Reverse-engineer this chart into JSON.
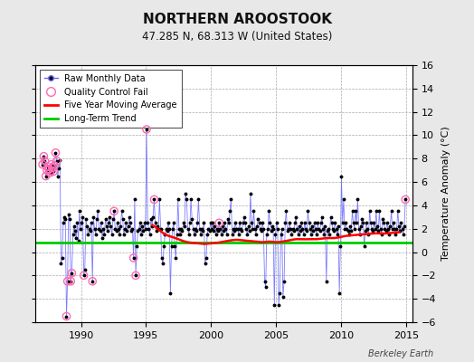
{
  "title": "NORTHERN AROOSTOOK",
  "subtitle": "47.285 N, 68.313 W (United States)",
  "ylabel_right": "Temperature Anomaly (°C)",
  "watermark": "Berkeley Earth",
  "xlim": [
    1986.5,
    2015.5
  ],
  "ylim": [
    -6,
    16
  ],
  "yticks": [
    -6,
    -4,
    -2,
    0,
    2,
    4,
    6,
    8,
    10,
    12,
    14,
    16
  ],
  "xticks": [
    1990,
    1995,
    2000,
    2005,
    2010,
    2015
  ],
  "background_color": "#e8e8e8",
  "plot_bg_color": "#ffffff",
  "raw_line_color": "#6666ff",
  "raw_marker_color": "#000000",
  "qc_fail_color": "#ff69b4",
  "moving_avg_color": "#ff0000",
  "trend_color": "#00cc00",
  "trend_value": 0.85,
  "moving_avg": {
    "x": [
      1995.5,
      1996.0,
      1996.5,
      1997.0,
      1997.5,
      1998.0,
      1998.5,
      1999.0,
      1999.5,
      2000.0,
      2000.5,
      2001.0,
      2001.5,
      2002.0,
      2002.5,
      2003.0,
      2003.5,
      2004.0,
      2004.5,
      2005.0,
      2005.5,
      2006.0,
      2006.5,
      2007.0,
      2007.5,
      2008.0,
      2008.5,
      2009.0,
      2009.5,
      2010.0,
      2010.5,
      2011.0,
      2011.5,
      2012.0,
      2012.5,
      2013.0,
      2013.5,
      2014.0,
      2014.5
    ],
    "y": [
      2.3,
      1.9,
      1.5,
      1.3,
      1.1,
      0.9,
      0.8,
      0.75,
      0.7,
      0.75,
      0.8,
      0.9,
      1.0,
      1.05,
      1.0,
      0.95,
      0.9,
      0.85,
      0.9,
      0.85,
      0.9,
      1.0,
      1.1,
      1.1,
      1.1,
      1.1,
      1.15,
      1.2,
      1.2,
      1.3,
      1.4,
      1.45,
      1.5,
      1.55,
      1.6,
      1.6,
      1.6,
      1.65,
      1.7
    ]
  },
  "raw_data_x": [
    1987.04,
    1987.13,
    1987.21,
    1987.29,
    1987.38,
    1987.46,
    1987.54,
    1987.63,
    1987.71,
    1987.79,
    1987.88,
    1987.96,
    1988.04,
    1988.13,
    1988.21,
    1988.29,
    1988.38,
    1988.46,
    1988.54,
    1988.63,
    1988.71,
    1988.79,
    1988.88,
    1988.96,
    1989.04,
    1989.13,
    1989.21,
    1989.29,
    1989.38,
    1989.46,
    1989.54,
    1989.63,
    1989.71,
    1989.79,
    1989.88,
    1989.96,
    1990.04,
    1990.13,
    1990.21,
    1990.29,
    1990.38,
    1990.46,
    1990.54,
    1990.63,
    1990.71,
    1990.79,
    1990.88,
    1990.96,
    1991.04,
    1991.13,
    1991.21,
    1991.29,
    1991.38,
    1991.46,
    1991.54,
    1991.63,
    1991.71,
    1991.79,
    1991.88,
    1991.96,
    1992.04,
    1992.13,
    1992.21,
    1992.29,
    1992.38,
    1992.46,
    1992.54,
    1992.63,
    1992.71,
    1992.79,
    1992.88,
    1992.96,
    1993.04,
    1993.13,
    1993.21,
    1993.29,
    1993.38,
    1993.46,
    1993.54,
    1993.63,
    1993.71,
    1993.79,
    1993.88,
    1993.96,
    1994.04,
    1994.13,
    1994.21,
    1994.29,
    1994.38,
    1994.46,
    1994.54,
    1994.63,
    1994.71,
    1994.79,
    1994.88,
    1994.96,
    1995.04,
    1995.13,
    1995.21,
    1995.29,
    1995.38,
    1995.46,
    1995.54,
    1995.63,
    1995.71,
    1995.79,
    1995.88,
    1995.96,
    1996.04,
    1996.13,
    1996.21,
    1996.29,
    1996.38,
    1996.46,
    1996.54,
    1996.63,
    1996.71,
    1996.79,
    1996.88,
    1996.96,
    1997.04,
    1997.13,
    1997.21,
    1997.29,
    1997.38,
    1997.46,
    1997.54,
    1997.63,
    1997.71,
    1997.79,
    1997.88,
    1997.96,
    1998.04,
    1998.13,
    1998.21,
    1998.29,
    1998.38,
    1998.46,
    1998.54,
    1998.63,
    1998.71,
    1998.79,
    1998.88,
    1998.96,
    1999.04,
    1999.13,
    1999.21,
    1999.29,
    1999.38,
    1999.46,
    1999.54,
    1999.63,
    1999.71,
    1999.79,
    1999.88,
    1999.96,
    2000.04,
    2000.13,
    2000.21,
    2000.29,
    2000.38,
    2000.46,
    2000.54,
    2000.63,
    2000.71,
    2000.79,
    2000.88,
    2000.96,
    2001.04,
    2001.13,
    2001.21,
    2001.29,
    2001.38,
    2001.46,
    2001.54,
    2001.63,
    2001.71,
    2001.79,
    2001.88,
    2001.96,
    2002.04,
    2002.13,
    2002.21,
    2002.29,
    2002.38,
    2002.46,
    2002.54,
    2002.63,
    2002.71,
    2002.79,
    2002.88,
    2002.96,
    2003.04,
    2003.13,
    2003.21,
    2003.29,
    2003.38,
    2003.46,
    2003.54,
    2003.63,
    2003.71,
    2003.79,
    2003.88,
    2003.96,
    2004.04,
    2004.13,
    2004.21,
    2004.29,
    2004.38,
    2004.46,
    2004.54,
    2004.63,
    2004.71,
    2004.79,
    2004.88,
    2004.96,
    2005.04,
    2005.13,
    2005.21,
    2005.29,
    2005.38,
    2005.46,
    2005.54,
    2005.63,
    2005.71,
    2005.79,
    2005.88,
    2005.96,
    2006.04,
    2006.13,
    2006.21,
    2006.29,
    2006.38,
    2006.46,
    2006.54,
    2006.63,
    2006.71,
    2006.79,
    2006.88,
    2006.96,
    2007.04,
    2007.13,
    2007.21,
    2007.29,
    2007.38,
    2007.46,
    2007.54,
    2007.63,
    2007.71,
    2007.79,
    2007.88,
    2007.96,
    2008.04,
    2008.13,
    2008.21,
    2008.29,
    2008.38,
    2008.46,
    2008.54,
    2008.63,
    2008.71,
    2008.79,
    2008.88,
    2008.96,
    2009.04,
    2009.13,
    2009.21,
    2009.29,
    2009.38,
    2009.46,
    2009.54,
    2009.63,
    2009.71,
    2009.79,
    2009.88,
    2009.96,
    2010.04,
    2010.13,
    2010.21,
    2010.29,
    2010.38,
    2010.46,
    2010.54,
    2010.63,
    2010.71,
    2010.79,
    2010.88,
    2010.96,
    2011.04,
    2011.13,
    2011.21,
    2011.29,
    2011.38,
    2011.46,
    2011.54,
    2011.63,
    2011.71,
    2011.79,
    2011.88,
    2011.96,
    2012.04,
    2012.13,
    2012.21,
    2012.29,
    2012.38,
    2012.46,
    2012.54,
    2012.63,
    2012.71,
    2012.79,
    2012.88,
    2012.96,
    2013.04,
    2013.13,
    2013.21,
    2013.29,
    2013.38,
    2013.46,
    2013.54,
    2013.63,
    2013.71,
    2013.79,
    2013.88,
    2013.96,
    2014.04,
    2014.13,
    2014.21,
    2014.29,
    2014.38,
    2014.46,
    2014.54,
    2014.63,
    2014.71,
    2014.79,
    2014.88,
    2014.96
  ],
  "raw_data_y": [
    7.5,
    8.2,
    7.8,
    6.5,
    7.0,
    7.3,
    7.1,
    6.8,
    7.5,
    7.2,
    6.9,
    7.4,
    8.5,
    7.8,
    6.5,
    7.2,
    7.9,
    -1.0,
    -0.5,
    2.5,
    3.0,
    2.8,
    -5.5,
    -2.5,
    3.2,
    2.8,
    -2.5,
    -1.8,
    1.5,
    2.2,
    1.8,
    1.2,
    2.5,
    1.0,
    3.5,
    2.0,
    2.5,
    3.0,
    -2.0,
    -1.5,
    2.8,
    2.2,
    1.5,
    2.0,
    1.8,
    2.5,
    -2.5,
    3.0,
    2.0,
    1.5,
    2.8,
    3.5,
    2.0,
    1.8,
    2.5,
    1.2,
    2.0,
    1.5,
    2.8,
    2.2,
    1.8,
    2.5,
    3.0,
    2.2,
    1.5,
    2.8,
    3.5,
    2.0,
    1.8,
    2.5,
    2.0,
    1.5,
    2.2,
    3.5,
    2.8,
    1.5,
    2.0,
    2.5,
    1.8,
    2.2,
    3.0,
    2.5,
    1.8,
    2.0,
    -0.5,
    4.5,
    -2.0,
    0.5,
    1.8,
    2.0,
    2.5,
    1.5,
    2.2,
    1.8,
    2.5,
    2.0,
    10.5,
    2.5,
    2.0,
    1.5,
    2.8,
    2.2,
    3.0,
    4.5,
    2.5,
    1.8,
    2.2,
    2.0,
    4.5,
    2.0,
    -0.5,
    -1.0,
    0.5,
    1.5,
    2.0,
    1.8,
    2.5,
    2.0,
    -3.5,
    0.5,
    2.0,
    2.5,
    0.5,
    -0.5,
    1.5,
    4.5,
    2.0,
    1.5,
    2.0,
    1.8,
    2.5,
    2.2,
    5.0,
    4.5,
    2.0,
    1.5,
    2.5,
    4.5,
    2.8,
    2.0,
    1.5,
    2.0,
    1.8,
    2.5,
    4.5,
    2.0,
    1.5,
    2.0,
    1.8,
    2.5,
    -1.0,
    -0.5,
    1.5,
    2.0,
    1.8,
    2.5,
    2.0,
    2.5,
    1.8,
    2.2,
    1.5,
    2.0,
    1.8,
    2.5,
    2.0,
    1.5,
    2.2,
    1.8,
    2.5,
    2.0,
    1.5,
    2.8,
    2.5,
    3.5,
    4.5,
    1.5,
    2.0,
    1.8,
    2.5,
    2.0,
    2.0,
    1.5,
    2.5,
    2.0,
    1.8,
    2.5,
    3.0,
    2.5,
    2.0,
    1.5,
    2.2,
    1.8,
    5.0,
    2.5,
    2.0,
    3.5,
    2.0,
    1.5,
    2.2,
    2.8,
    2.5,
    2.0,
    1.8,
    2.5,
    2.0,
    -2.5,
    -3.0,
    1.5,
    2.0,
    3.5,
    2.5,
    1.8,
    2.2,
    2.0,
    -4.5,
    1.5,
    2.5,
    2.0,
    -4.5,
    -3.5,
    1.5,
    2.0,
    -3.8,
    -2.5,
    2.5,
    3.5,
    1.8,
    2.0,
    2.5,
    2.0,
    1.5,
    2.0,
    1.8,
    2.5,
    3.0,
    2.0,
    1.5,
    2.2,
    1.8,
    2.5,
    2.0,
    1.5,
    2.5,
    2.0,
    1.8,
    3.5,
    2.5,
    2.0,
    1.5,
    2.2,
    1.8,
    2.5,
    2.0,
    1.5,
    2.5,
    2.0,
    1.8,
    2.5,
    3.0,
    2.0,
    1.5,
    2.2,
    -2.5,
    1.8,
    2.0,
    1.5,
    3.0,
    2.5,
    2.0,
    1.8,
    2.5,
    2.0,
    1.5,
    2.2,
    -3.5,
    0.5,
    6.5,
    2.5,
    4.5,
    2.0,
    2.5,
    2.0,
    1.8,
    1.5,
    2.2,
    1.8,
    3.5,
    2.5,
    2.0,
    3.5,
    2.5,
    4.5,
    2.0,
    1.5,
    2.2,
    2.8,
    2.5,
    0.5,
    1.8,
    2.5,
    2.0,
    1.5,
    3.5,
    2.5,
    2.0,
    1.8,
    2.5,
    2.0,
    3.5,
    2.2,
    1.8,
    3.5,
    2.0,
    1.5,
    2.8,
    2.5,
    2.0,
    1.8,
    2.5,
    2.0,
    1.5,
    2.2,
    3.5,
    2.0,
    2.5,
    2.0,
    1.5,
    2.0,
    3.5,
    2.2,
    1.8,
    2.5,
    2.0,
    1.5,
    2.2,
    4.5
  ],
  "qc_fail_x": [
    1987.04,
    1987.13,
    1987.21,
    1987.29,
    1987.38,
    1987.46,
    1987.54,
    1987.63,
    1987.71,
    1987.79,
    1987.88,
    1987.96,
    1988.04,
    1988.13,
    1988.88,
    1988.96,
    1989.21,
    1989.29,
    1990.21,
    1990.88,
    1992.54,
    1994.04,
    1994.21,
    1995.04,
    1995.63,
    2000.63,
    2014.96
  ],
  "qc_fail_y": [
    7.5,
    8.2,
    7.8,
    6.5,
    7.0,
    7.3,
    7.1,
    6.8,
    7.5,
    7.2,
    6.9,
    7.4,
    8.5,
    7.8,
    -5.5,
    -2.5,
    -2.5,
    -1.8,
    -2.0,
    -2.5,
    3.5,
    -0.5,
    -2.0,
    10.5,
    4.5,
    2.5,
    4.5
  ]
}
